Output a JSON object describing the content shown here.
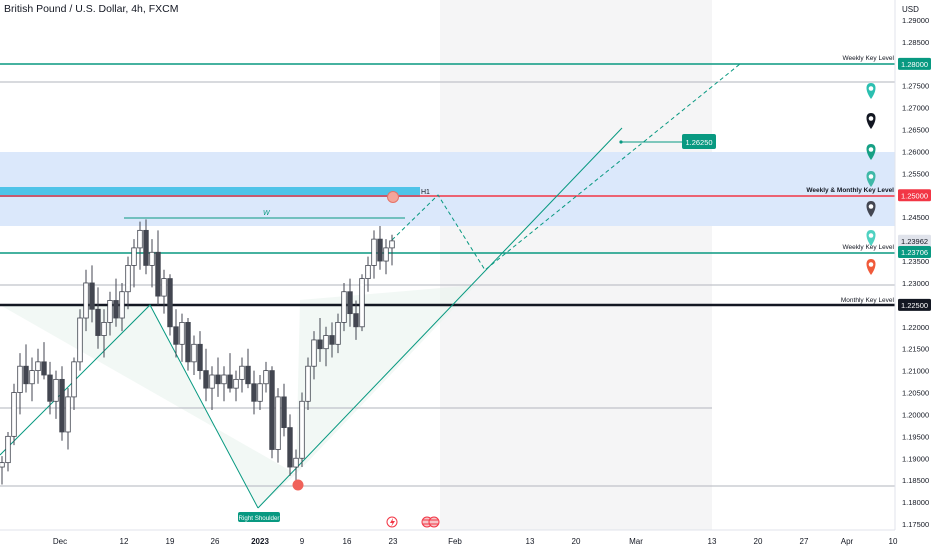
{
  "header": {
    "symbol_title": "British Pound / U.S. Dollar, 4h, FXCM"
  },
  "chart_data": {
    "type": "candlestick",
    "currency_label": "USD",
    "ylim": [
      1.1735,
      1.2925
    ],
    "y_ticks": [
      {
        "value": 1.29,
        "label": "1.29000"
      },
      {
        "value": 1.285,
        "label": "1.28500"
      },
      {
        "value": 1.28,
        "label": "1.28000"
      },
      {
        "value": 1.275,
        "label": "1.27500"
      },
      {
        "value": 1.27,
        "label": "1.27000"
      },
      {
        "value": 1.265,
        "label": "1.26500"
      },
      {
        "value": 1.26,
        "label": "1.26000"
      },
      {
        "value": 1.255,
        "label": "1.25500"
      },
      {
        "value": 1.25,
        "label": "1.25000"
      },
      {
        "value": 1.245,
        "label": "1.24500"
      },
      {
        "value": 1.24,
        "label": "1.24000"
      },
      {
        "value": 1.235,
        "label": "1.23500"
      },
      {
        "value": 1.23,
        "label": "1.23000"
      },
      {
        "value": 1.225,
        "label": "1.22500"
      },
      {
        "value": 1.22,
        "label": "1.22000"
      },
      {
        "value": 1.215,
        "label": "1.21500"
      },
      {
        "value": 1.21,
        "label": "1.21000"
      },
      {
        "value": 1.205,
        "label": "1.20500"
      },
      {
        "value": 1.2,
        "label": "1.20000"
      },
      {
        "value": 1.195,
        "label": "1.19500"
      },
      {
        "value": 1.19,
        "label": "1.19000"
      },
      {
        "value": 1.185,
        "label": "1.18500"
      },
      {
        "value": 1.18,
        "label": "1.18000"
      },
      {
        "value": 1.175,
        "label": "1.17500"
      }
    ],
    "x_ticks": [
      {
        "label": "Dec",
        "bold": false
      },
      {
        "label": "12",
        "bold": false
      },
      {
        "label": "19",
        "bold": false
      },
      {
        "label": "26",
        "bold": false
      },
      {
        "label": "2023",
        "bold": true
      },
      {
        "label": "9",
        "bold": false
      },
      {
        "label": "16",
        "bold": false
      },
      {
        "label": "23",
        "bold": false
      },
      {
        "label": "Feb",
        "bold": false
      },
      {
        "label": "13",
        "bold": false
      },
      {
        "label": "20",
        "bold": false
      },
      {
        "label": "Mar",
        "bold": false
      },
      {
        "label": "13",
        "bold": false
      },
      {
        "label": "20",
        "bold": false
      },
      {
        "label": "27",
        "bold": false
      },
      {
        "label": "Apr",
        "bold": false
      },
      {
        "label": "10",
        "bold": false
      }
    ],
    "price_badges": [
      {
        "value": 1.28,
        "label": "1.28000",
        "color": "#089981"
      },
      {
        "value": 1.25,
        "label": "1.25000",
        "color": "#f23645"
      },
      {
        "value": 1.23962,
        "label": "1.23962",
        "color": "#e0e3eb"
      },
      {
        "value": 1.23706,
        "label": "1.23706",
        "color": "#089981"
      },
      {
        "value": 1.225,
        "label": "1.22500",
        "color": "#131722"
      }
    ],
    "annotations": {
      "weekly_key_level_top": "Weekly Key Level",
      "weekly_monthly_key_level": "Weekly & Monthly Key Level",
      "weekly_key_level_mid": "Weekly Key Level",
      "monthly_key_level": "Monthly Key Level",
      "h1": "H1",
      "w": "W",
      "target_label": "1.26250",
      "right_shoulder": "Right Shoulder"
    },
    "colors": {
      "up": "#ffffff",
      "down": "#434651",
      "teal": "#089981",
      "red": "#f23645",
      "zone": "#dbe8fb",
      "cyan": "#4fc3e8"
    },
    "candles": [
      [
        1.188,
        1.1905,
        1.184,
        1.189
      ],
      [
        1.189,
        1.196,
        1.187,
        1.195
      ],
      [
        1.195,
        1.207,
        1.193,
        1.205
      ],
      [
        1.205,
        1.214,
        1.2,
        1.211
      ],
      [
        1.211,
        1.216,
        1.205,
        1.207
      ],
      [
        1.207,
        1.213,
        1.203,
        1.21
      ],
      [
        1.21,
        1.215,
        1.207,
        1.212
      ],
      [
        1.212,
        1.2165,
        1.208,
        1.209
      ],
      [
        1.209,
        1.212,
        1.2,
        1.203
      ],
      [
        1.203,
        1.21,
        1.199,
        1.208
      ],
      [
        1.208,
        1.211,
        1.194,
        1.196
      ],
      [
        1.196,
        1.206,
        1.192,
        1.204
      ],
      [
        1.204,
        1.213,
        1.201,
        1.212
      ],
      [
        1.212,
        1.224,
        1.21,
        1.222
      ],
      [
        1.222,
        1.233,
        1.219,
        1.23
      ],
      [
        1.23,
        1.234,
        1.221,
        1.224
      ],
      [
        1.224,
        1.229,
        1.215,
        1.218
      ],
      [
        1.218,
        1.224,
        1.213,
        1.221
      ],
      [
        1.221,
        1.228,
        1.218,
        1.226
      ],
      [
        1.226,
        1.231,
        1.22,
        1.222
      ],
      [
        1.222,
        1.23,
        1.219,
        1.228
      ],
      [
        1.228,
        1.236,
        1.224,
        1.234
      ],
      [
        1.234,
        1.24,
        1.229,
        1.238
      ],
      [
        1.238,
        1.244,
        1.233,
        1.242
      ],
      [
        1.242,
        1.2445,
        1.232,
        1.234
      ],
      [
        1.234,
        1.24,
        1.229,
        1.237
      ],
      [
        1.237,
        1.242,
        1.225,
        1.227
      ],
      [
        1.227,
        1.233,
        1.223,
        1.231
      ],
      [
        1.231,
        1.232,
        1.218,
        1.22
      ],
      [
        1.22,
        1.224,
        1.213,
        1.216
      ],
      [
        1.216,
        1.223,
        1.212,
        1.221
      ],
      [
        1.221,
        1.222,
        1.21,
        1.212
      ],
      [
        1.212,
        1.218,
        1.209,
        1.216
      ],
      [
        1.216,
        1.219,
        1.208,
        1.21
      ],
      [
        1.21,
        1.215,
        1.203,
        1.206
      ],
      [
        1.206,
        1.211,
        1.201,
        1.209
      ],
      [
        1.209,
        1.213,
        1.204,
        1.207
      ],
      [
        1.207,
        1.211,
        1.203,
        1.209
      ],
      [
        1.209,
        1.214,
        1.205,
        1.206
      ],
      [
        1.206,
        1.21,
        1.203,
        1.208
      ],
      [
        1.208,
        1.213,
        1.205,
        1.211
      ],
      [
        1.211,
        1.215,
        1.206,
        1.207
      ],
      [
        1.207,
        1.21,
        1.2,
        1.203
      ],
      [
        1.203,
        1.209,
        1.201,
        1.207
      ],
      [
        1.207,
        1.212,
        1.205,
        1.21
      ],
      [
        1.21,
        1.211,
        1.19,
        1.192
      ],
      [
        1.192,
        1.206,
        1.189,
        1.204
      ],
      [
        1.204,
        1.207,
        1.195,
        1.197
      ],
      [
        1.197,
        1.2,
        1.186,
        1.188
      ],
      [
        1.188,
        1.192,
        1.184,
        1.19
      ],
      [
        1.19,
        1.205,
        1.188,
        1.203
      ],
      [
        1.203,
        1.213,
        1.201,
        1.211
      ],
      [
        1.211,
        1.219,
        1.208,
        1.217
      ],
      [
        1.217,
        1.222,
        1.212,
        1.215
      ],
      [
        1.215,
        1.22,
        1.211,
        1.218
      ],
      [
        1.218,
        1.221,
        1.213,
        1.216
      ],
      [
        1.216,
        1.223,
        1.214,
        1.221
      ],
      [
        1.221,
        1.23,
        1.219,
        1.228
      ],
      [
        1.228,
        1.231,
        1.22,
        1.223
      ],
      [
        1.223,
        1.226,
        1.217,
        1.22
      ],
      [
        1.22,
        1.232,
        1.219,
        1.231
      ],
      [
        1.231,
        1.236,
        1.228,
        1.234
      ],
      [
        1.234,
        1.242,
        1.231,
        1.24
      ],
      [
        1.24,
        1.243,
        1.233,
        1.235
      ],
      [
        1.235,
        1.24,
        1.232,
        1.238
      ],
      [
        1.238,
        1.241,
        1.234,
        1.2396
      ]
    ]
  }
}
